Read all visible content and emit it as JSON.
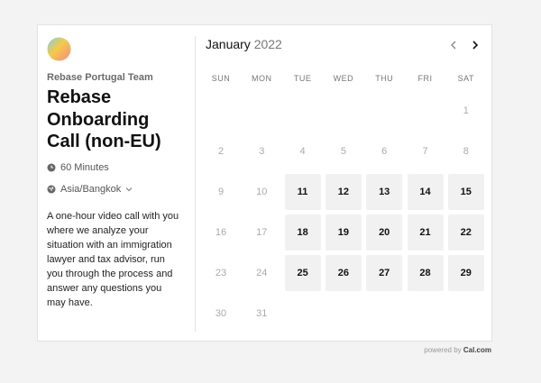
{
  "event": {
    "team": "Rebase Portugal Team",
    "title": "Rebase Onboarding Call (non-EU)",
    "duration": "60 Minutes",
    "timezone": "Asia/Bangkok",
    "description": "A one-hour video call with you where we analyze your situation with an immigration lawyer and tax advisor, run you through the process and answer any questions you may have."
  },
  "calendar": {
    "month": "January",
    "year": "2022",
    "weekdays": [
      "SUN",
      "MON",
      "TUE",
      "WED",
      "THU",
      "FRI",
      "SAT"
    ],
    "weeks": [
      [
        null,
        null,
        null,
        null,
        null,
        null,
        {
          "day": 1,
          "available": false
        }
      ],
      [
        {
          "day": 2,
          "available": false
        },
        {
          "day": 3,
          "available": false
        },
        {
          "day": 4,
          "available": false
        },
        {
          "day": 5,
          "available": false
        },
        {
          "day": 6,
          "available": false
        },
        {
          "day": 7,
          "available": false
        },
        {
          "day": 8,
          "available": false
        }
      ],
      [
        {
          "day": 9,
          "available": false
        },
        {
          "day": 10,
          "available": false
        },
        {
          "day": 11,
          "available": true
        },
        {
          "day": 12,
          "available": true
        },
        {
          "day": 13,
          "available": true
        },
        {
          "day": 14,
          "available": true
        },
        {
          "day": 15,
          "available": true
        }
      ],
      [
        {
          "day": 16,
          "available": false
        },
        {
          "day": 17,
          "available": false
        },
        {
          "day": 18,
          "available": true
        },
        {
          "day": 19,
          "available": true
        },
        {
          "day": 20,
          "available": true
        },
        {
          "day": 21,
          "available": true
        },
        {
          "day": 22,
          "available": true
        }
      ],
      [
        {
          "day": 23,
          "available": false
        },
        {
          "day": 24,
          "available": false
        },
        {
          "day": 25,
          "available": true
        },
        {
          "day": 26,
          "available": true
        },
        {
          "day": 27,
          "available": true
        },
        {
          "day": 28,
          "available": true
        },
        {
          "day": 29,
          "available": true
        }
      ],
      [
        {
          "day": 30,
          "available": false
        },
        {
          "day": 31,
          "available": false
        },
        null,
        null,
        null,
        null,
        null
      ]
    ]
  },
  "footer": {
    "powered": "powered by",
    "brand": "Cal.com"
  }
}
